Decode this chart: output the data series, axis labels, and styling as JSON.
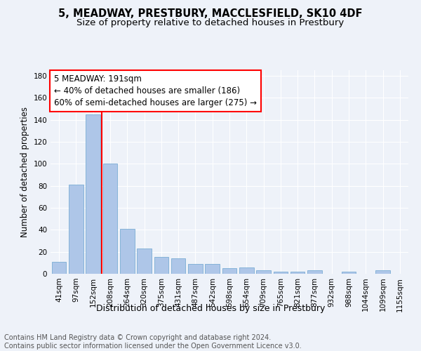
{
  "title": "5, MEADWAY, PRESTBURY, MACCLESFIELD, SK10 4DF",
  "subtitle": "Size of property relative to detached houses in Prestbury",
  "xlabel": "Distribution of detached houses by size in Prestbury",
  "ylabel": "Number of detached properties",
  "categories": [
    "41sqm",
    "97sqm",
    "152sqm",
    "208sqm",
    "264sqm",
    "320sqm",
    "375sqm",
    "431sqm",
    "487sqm",
    "542sqm",
    "598sqm",
    "654sqm",
    "709sqm",
    "765sqm",
    "821sqm",
    "877sqm",
    "932sqm",
    "988sqm",
    "1044sqm",
    "1099sqm",
    "1155sqm"
  ],
  "values": [
    11,
    81,
    145,
    100,
    41,
    23,
    15,
    14,
    9,
    9,
    5,
    6,
    3,
    2,
    2,
    3,
    0,
    2,
    0,
    3,
    0
  ],
  "bar_color": "#aec6e8",
  "bar_edge_color": "#7aadd4",
  "vline_x_index": 2.5,
  "vline_color": "red",
  "annotation_text": "5 MEADWAY: 191sqm\n← 40% of detached houses are smaller (186)\n60% of semi-detached houses are larger (275) →",
  "annotation_box_color": "white",
  "annotation_box_edge_color": "red",
  "ylim": [
    0,
    185
  ],
  "yticks": [
    0,
    20,
    40,
    60,
    80,
    100,
    120,
    140,
    160,
    180
  ],
  "footer_line1": "Contains HM Land Registry data © Crown copyright and database right 2024.",
  "footer_line2": "Contains public sector information licensed under the Open Government Licence v3.0.",
  "background_color": "#eef2f9",
  "grid_color": "white",
  "title_fontsize": 10.5,
  "subtitle_fontsize": 9.5,
  "xlabel_fontsize": 9,
  "ylabel_fontsize": 8.5,
  "tick_fontsize": 7.5,
  "annotation_fontsize": 8.5,
  "footer_fontsize": 7
}
